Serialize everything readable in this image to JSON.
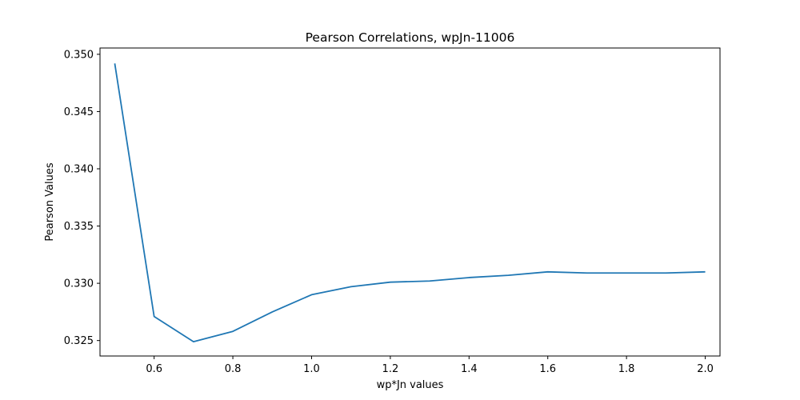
{
  "chart_data": {
    "type": "line",
    "title": "Pearson Correlations, wpJn-11006",
    "xlabel": "wp*Jn values",
    "ylabel": "Pearson Values",
    "xlim": [
      0.4625,
      2.0375
    ],
    "ylim": [
      0.32365,
      0.35055
    ],
    "xticks": [
      "0.6",
      "0.8",
      "1.0",
      "1.2",
      "1.4",
      "1.6",
      "1.8",
      "2.0"
    ],
    "yticks": [
      "0.325",
      "0.330",
      "0.335",
      "0.340",
      "0.345",
      "0.350"
    ],
    "grid": false,
    "series": [
      {
        "name": "Pearson",
        "color": "#1f77b4",
        "x": [
          0.5,
          0.6,
          0.7,
          0.8,
          0.9,
          1.0,
          1.1,
          1.2,
          1.3,
          1.4,
          1.5,
          1.6,
          1.7,
          1.8,
          1.9,
          2.0
        ],
        "y": [
          0.3492,
          0.3271,
          0.3249,
          0.3258,
          0.3275,
          0.329,
          0.3297,
          0.3301,
          0.3302,
          0.3305,
          0.3307,
          0.331,
          0.3309,
          0.3309,
          0.3309,
          0.331
        ]
      }
    ]
  }
}
